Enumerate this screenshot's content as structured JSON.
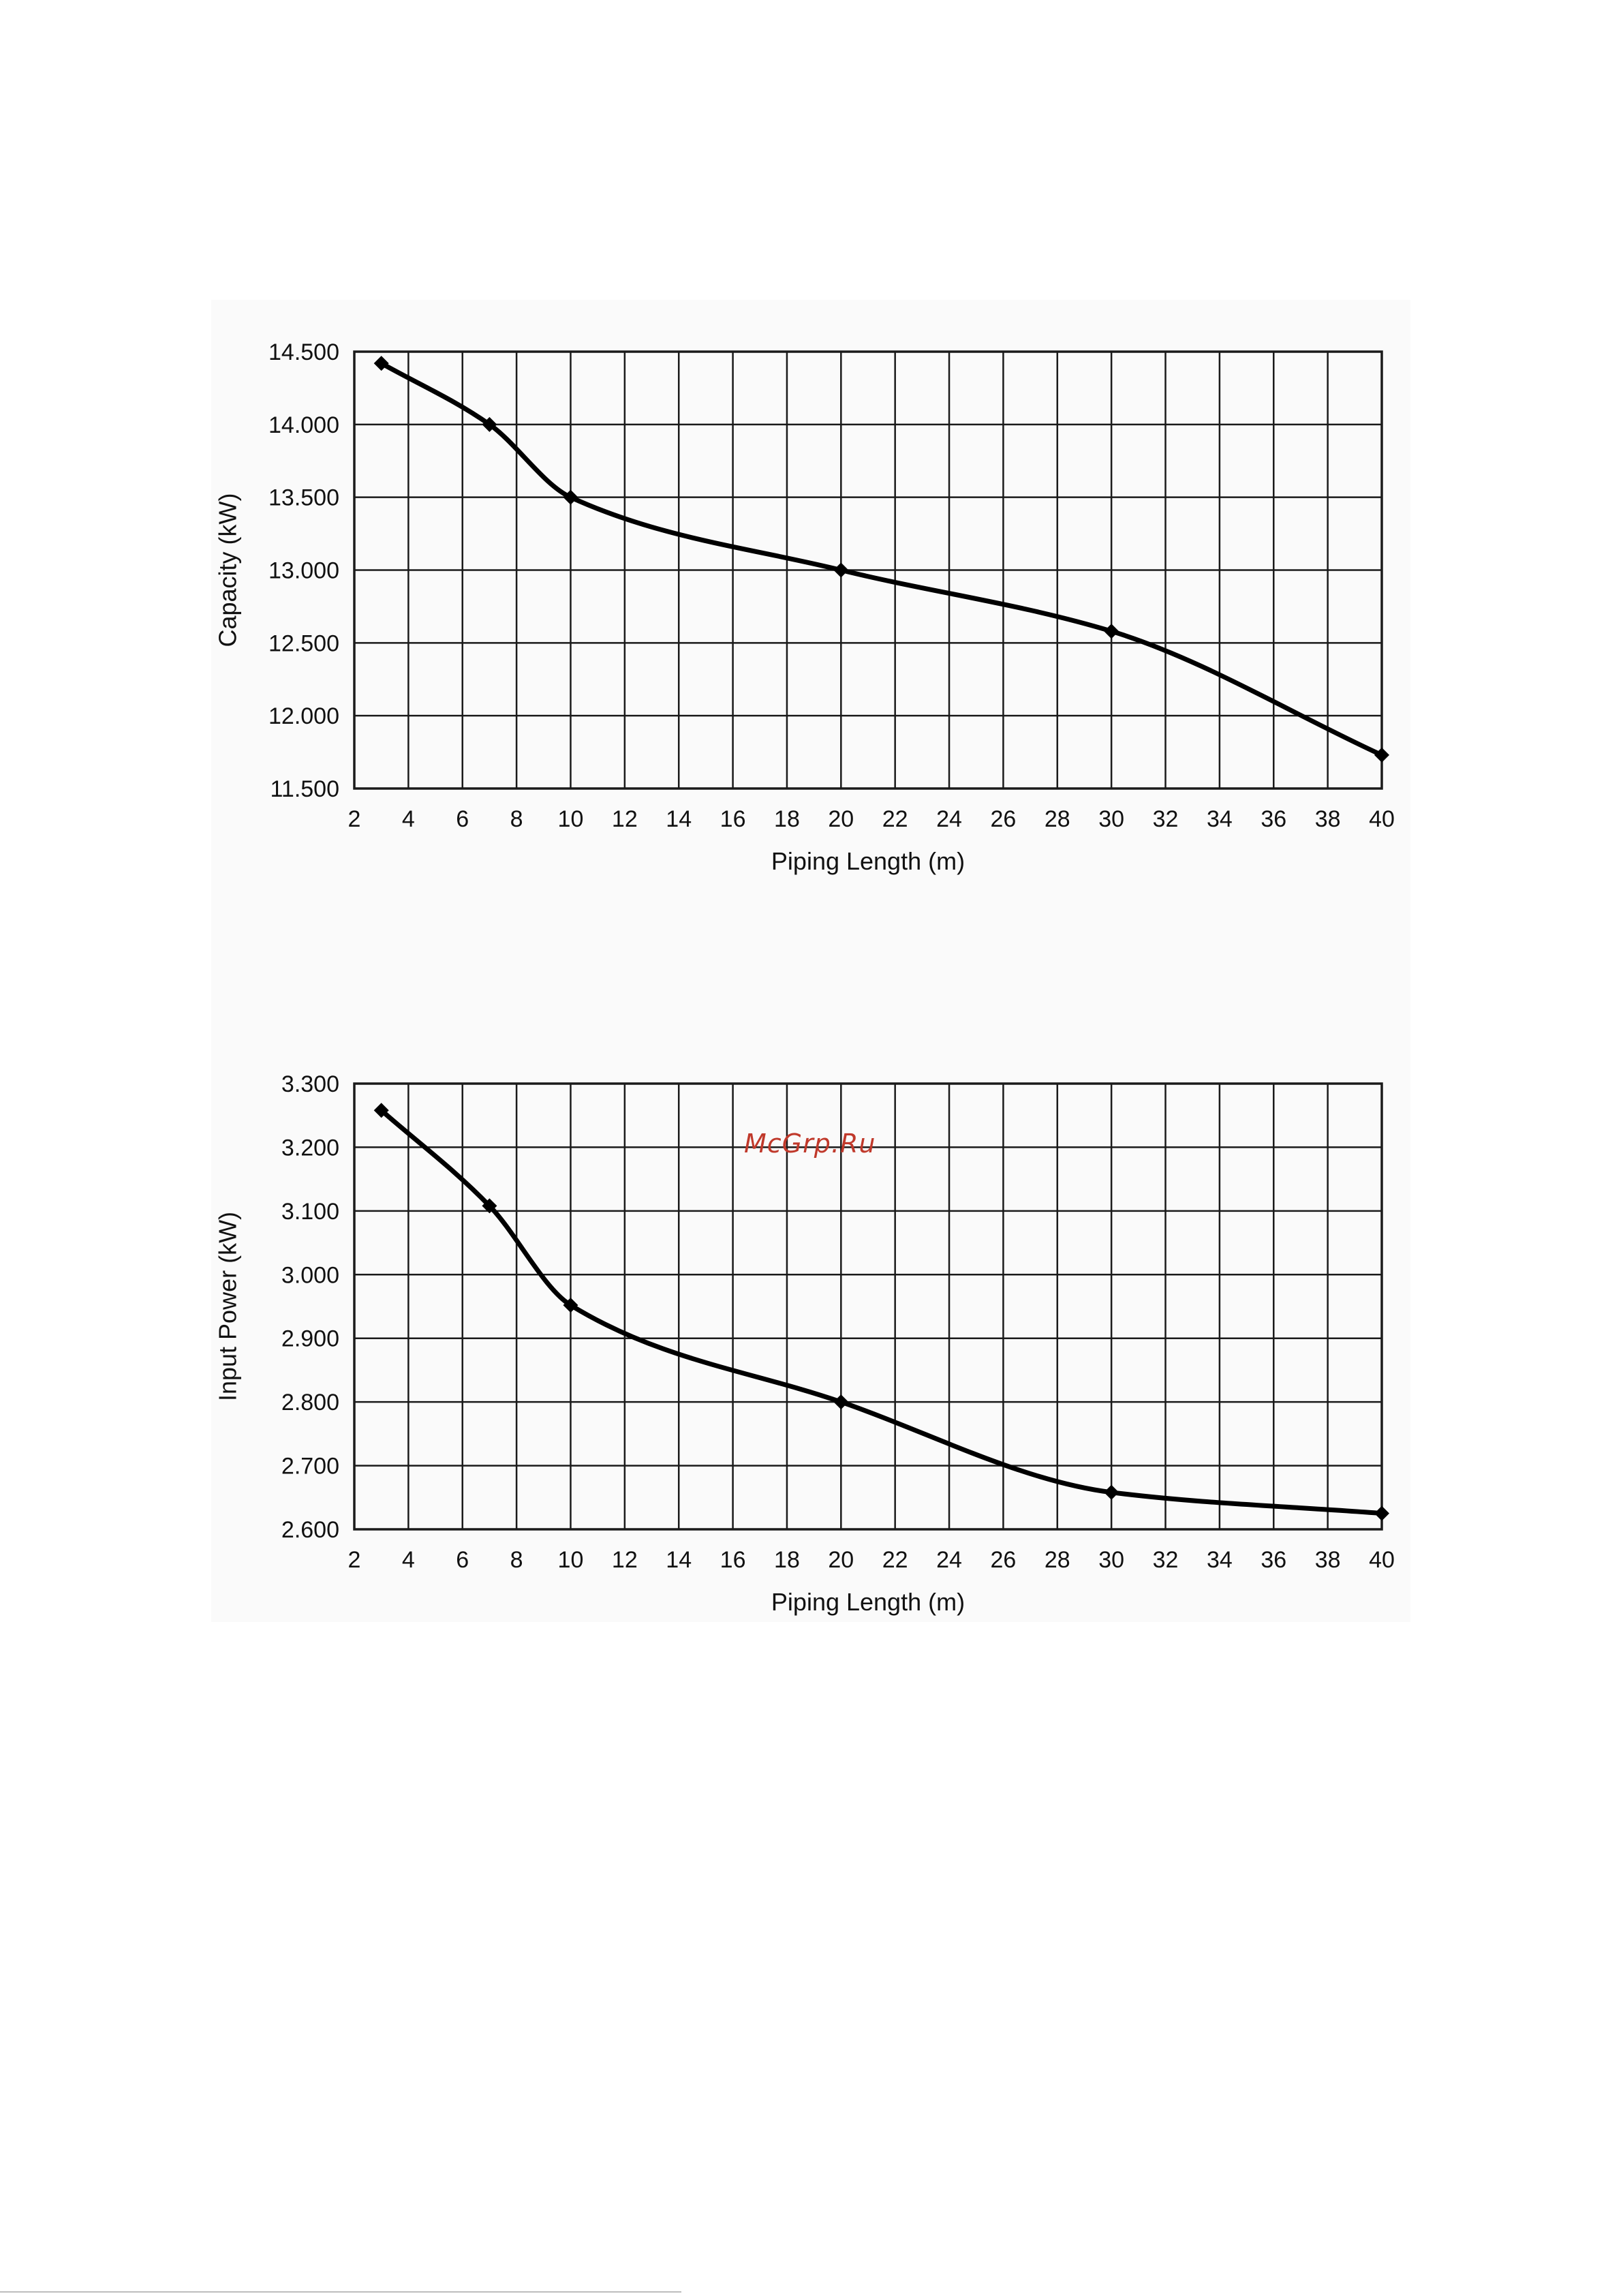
{
  "watermark": {
    "text": "McGrp.Ru",
    "color": "#c0392b"
  },
  "colors": {
    "line": "#000000",
    "grid": "#1a1a1a",
    "panel": "#fafafa"
  },
  "chart_data": [
    {
      "type": "line",
      "title": "",
      "xlabel": "Piping Length (m)",
      "ylabel": "Capacity (kW)",
      "xlim": [
        2,
        40
      ],
      "ylim": [
        11.5,
        14.5
      ],
      "x_ticks": [
        "2",
        "4",
        "6",
        "8",
        "10",
        "12",
        "14",
        "16",
        "18",
        "20",
        "22",
        "24",
        "26",
        "28",
        "30",
        "32",
        "34",
        "36",
        "38",
        "40"
      ],
      "y_ticks": [
        "14.500",
        "14.000",
        "13.500",
        "13.000",
        "12.500",
        "12.000",
        "11.500"
      ],
      "y_tick_values": [
        14.5,
        14.0,
        13.5,
        13.0,
        12.5,
        12.0,
        11.5
      ],
      "grid": true,
      "marker": "diamond",
      "x": [
        3,
        7,
        10,
        20,
        30,
        40
      ],
      "y": [
        14.42,
        14.0,
        13.5,
        13.0,
        12.58,
        11.73
      ]
    },
    {
      "type": "line",
      "title": "",
      "xlabel": "Piping Length (m)",
      "ylabel": "Input Power (kW)",
      "xlim": [
        2,
        40
      ],
      "ylim": [
        2.6,
        3.3
      ],
      "x_ticks": [
        "2",
        "4",
        "6",
        "8",
        "10",
        "12",
        "14",
        "16",
        "18",
        "20",
        "22",
        "24",
        "26",
        "28",
        "30",
        "32",
        "34",
        "36",
        "38",
        "40"
      ],
      "y_ticks": [
        "3.300",
        "3.200",
        "3.100",
        "3.000",
        "2.900",
        "2.800",
        "2.700",
        "2.600"
      ],
      "y_tick_values": [
        3.3,
        3.2,
        3.1,
        3.0,
        2.9,
        2.8,
        2.7,
        2.6
      ],
      "grid": true,
      "marker": "diamond",
      "x": [
        3,
        7,
        10,
        20,
        30,
        40
      ],
      "y": [
        3.258,
        3.108,
        2.952,
        2.8,
        2.658,
        2.625
      ]
    }
  ]
}
